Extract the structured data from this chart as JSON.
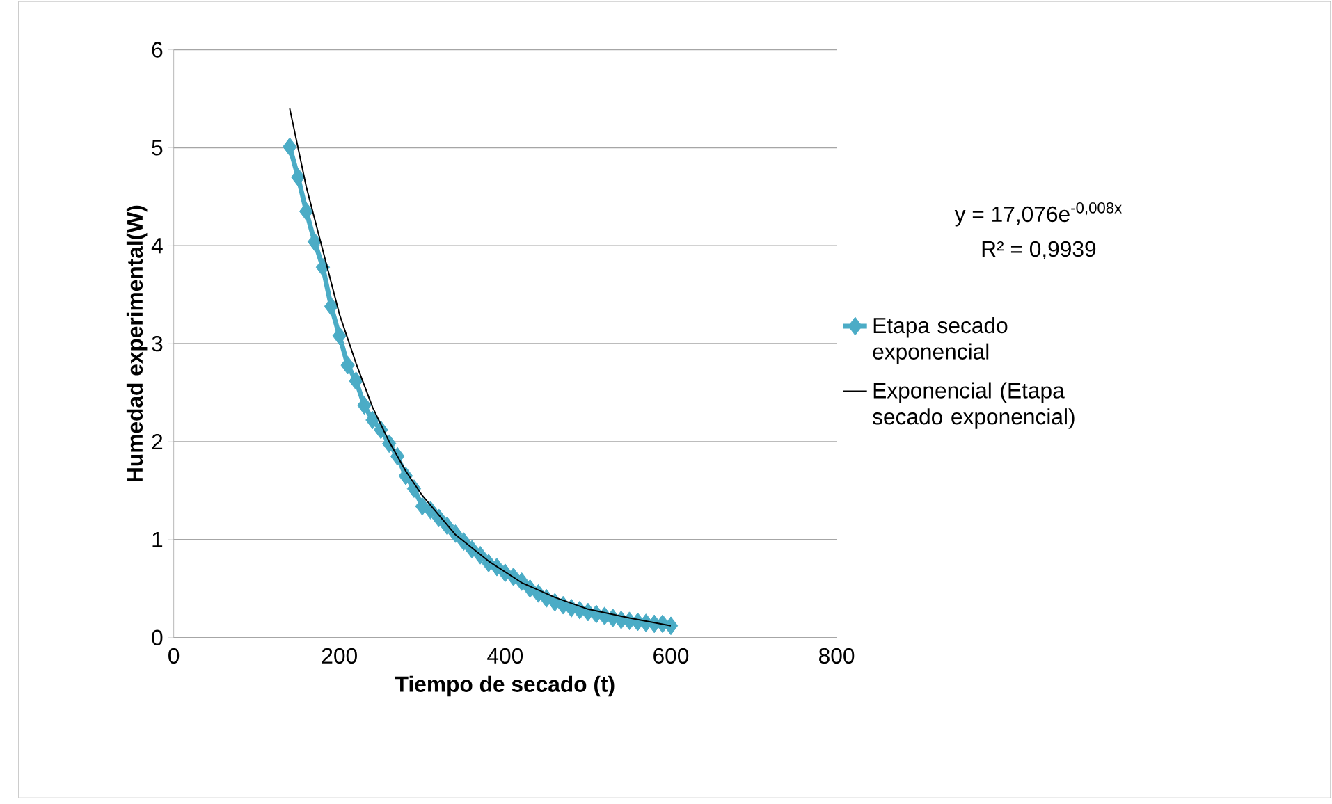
{
  "chart_data": {
    "type": "line",
    "xlabel": "Tiempo de secado (t)",
    "ylabel": "Humedad experimental(W)",
    "xlim": [
      0,
      800
    ],
    "xticks": [
      0,
      200,
      400,
      600,
      800
    ],
    "ylim": [
      0,
      6
    ],
    "yticks": [
      0,
      1,
      2,
      3,
      4,
      5,
      6
    ],
    "grid": "y",
    "legend": "right",
    "line_style": "solid",
    "annotations": [
      "y = 17,076e$^{-0,008x}$",
      "R² = 0,9939"
    ],
    "series": [
      {
        "name": "Etapa secado exponencial",
        "color": "#4bacc6",
        "marker": "diamond",
        "x": [
          140,
          150,
          160,
          170,
          180,
          190,
          200,
          210,
          220,
          230,
          240,
          250,
          260,
          270,
          280,
          290,
          300,
          310,
          320,
          330,
          340,
          350,
          360,
          370,
          380,
          390,
          400,
          410,
          420,
          430,
          440,
          450,
          460,
          470,
          480,
          490,
          500,
          510,
          520,
          530,
          540,
          550,
          560,
          570,
          580,
          590,
          600
        ],
        "values": [
          5.01,
          4.7,
          4.35,
          4.04,
          3.78,
          3.38,
          3.08,
          2.78,
          2.62,
          2.37,
          2.22,
          2.12,
          1.98,
          1.85,
          1.65,
          1.52,
          1.34,
          1.3,
          1.22,
          1.14,
          1.06,
          0.98,
          0.9,
          0.84,
          0.76,
          0.72,
          0.66,
          0.62,
          0.57,
          0.5,
          0.45,
          0.4,
          0.36,
          0.33,
          0.3,
          0.28,
          0.26,
          0.24,
          0.22,
          0.2,
          0.18,
          0.17,
          0.16,
          0.15,
          0.14,
          0.14,
          0.12
        ]
      },
      {
        "name": "Exponencial (Etapa secado exponencial)",
        "color": "#000000",
        "marker": "none",
        "x": [
          140,
          160,
          180,
          200,
          220,
          240,
          260,
          280,
          300,
          340,
          380,
          420,
          460,
          500,
          550,
          600
        ],
        "values": [
          5.4,
          4.6,
          3.95,
          3.3,
          2.8,
          2.35,
          2.0,
          1.7,
          1.45,
          1.05,
          0.78,
          0.56,
          0.41,
          0.29,
          0.2,
          0.12
        ]
      }
    ]
  }
}
